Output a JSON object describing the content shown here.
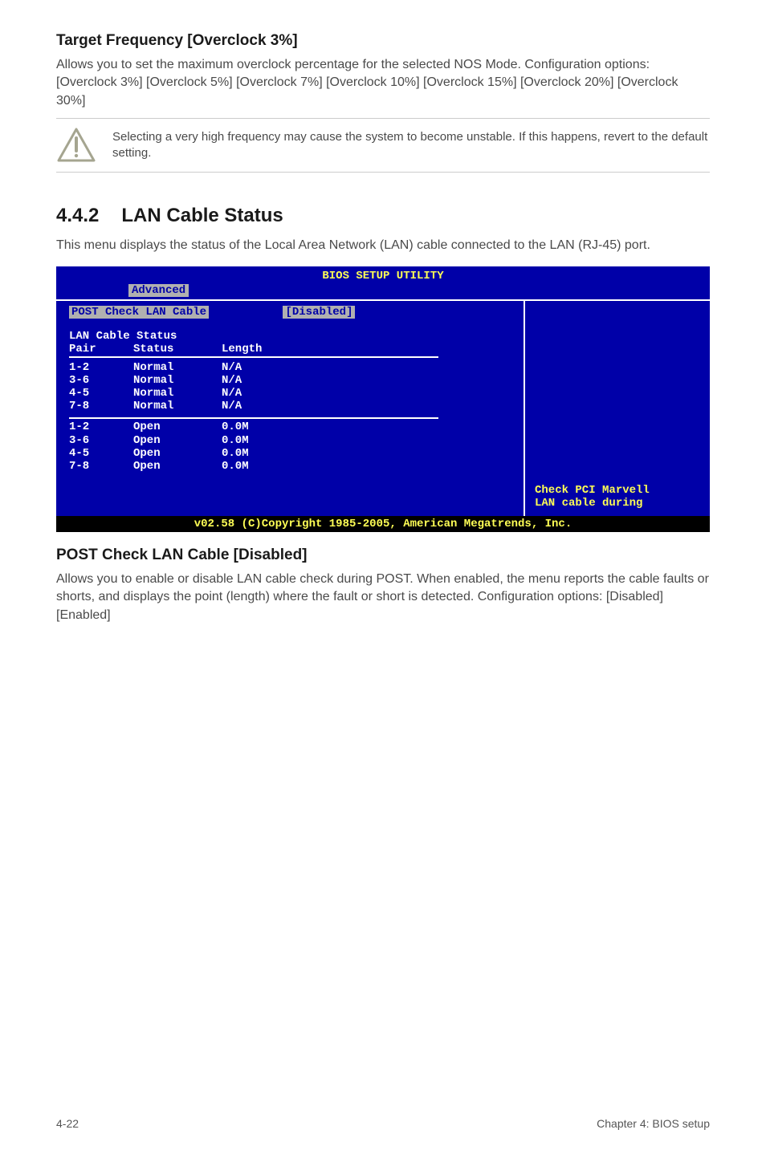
{
  "section1": {
    "heading": "Target Frequency [Overclock 3%]",
    "body": "Allows you to set the maximum overclock percentage for the selected NOS Mode. Configuration options: [Overclock 3%] [Overclock 5%] [Overclock 7%] [Overclock 10%] [Overclock 15%] [Overclock 20%] [Overclock 30%]"
  },
  "warning": {
    "icon_stroke": "#a8a89a",
    "icon_fill": "#ffffff",
    "text": "Selecting a very high frequency may cause the system to become unstable. If this happens, revert to the default setting."
  },
  "section2": {
    "number": "4.4.2",
    "title": "LAN Cable Status",
    "intro": "This menu displays the status of the Local Area Network (LAN) cable connected to the LAN (RJ-45) port."
  },
  "bios": {
    "title": "BIOS SETUP UTILITY",
    "tab": "Advanced",
    "post_label": "POST Check LAN Cable",
    "post_value": "[Disabled]",
    "table_title": "LAN Cable Status",
    "col1": "Pair",
    "col2": "Status",
    "col3": "Length",
    "normal_rows": [
      {
        "pair": "1-2",
        "status": "Normal",
        "length": "N/A"
      },
      {
        "pair": "3-6",
        "status": "Normal",
        "length": "N/A"
      },
      {
        "pair": "4-5",
        "status": "Normal",
        "length": "N/A"
      },
      {
        "pair": "7-8",
        "status": "Normal",
        "length": "N/A"
      }
    ],
    "open_rows": [
      {
        "pair": "1-2",
        "status": "Open",
        "length": "0.0M"
      },
      {
        "pair": "3-6",
        "status": "Open",
        "length": "0.0M"
      },
      {
        "pair": "4-5",
        "status": "Open",
        "length": "0.0M"
      },
      {
        "pair": "7-8",
        "status": "Open",
        "length": "0.0M"
      }
    ],
    "right1": "Check PCI Marvell",
    "right2": "LAN cable during",
    "footer": "v02.58 (C)Copyright 1985-2005, American Megatrends, Inc.",
    "bg": "#0000a8",
    "highlight_bg": "#b0b0b0",
    "accent": "#ffff55"
  },
  "section3": {
    "heading": "POST Check LAN Cable [Disabled]",
    "body": "Allows you to enable or disable LAN cable check during POST. When enabled, the menu reports the cable faults or shorts, and displays the point (length) where the fault or short is detected. Configuration options: [Disabled] [Enabled]"
  },
  "footer": {
    "left": "4-22",
    "right": "Chapter 4: BIOS setup"
  }
}
